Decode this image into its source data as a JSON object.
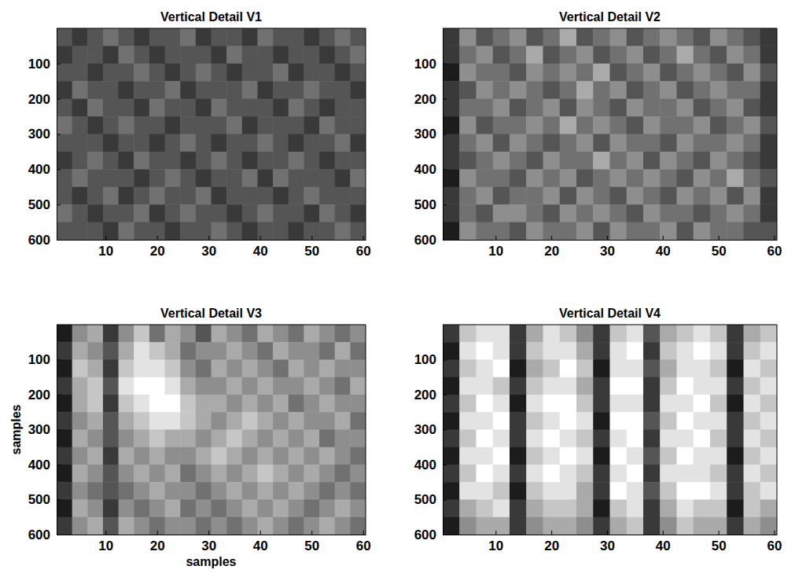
{
  "chart_data": [
    {
      "type": "heatmap",
      "title": "Vertical Detail V1",
      "xlim": [
        0.5,
        60.5
      ],
      "ylim": [
        0,
        600
      ],
      "xticks": [
        10,
        20,
        30,
        40,
        50,
        60
      ],
      "yticks": [
        100,
        200,
        300,
        400,
        500,
        600
      ],
      "clim": [
        0,
        9
      ],
      "x_edges": [
        0.5,
        3.5,
        6.5,
        9.5,
        12.5,
        15.5,
        18.5,
        21.5,
        24.5,
        27.5,
        30.5,
        33.5,
        36.5,
        39.5,
        42.5,
        45.5,
        48.5,
        51.5,
        54.5,
        57.5,
        60.5
      ],
      "y_edges": [
        0,
        50,
        100,
        150,
        200,
        250,
        300,
        350,
        400,
        450,
        500,
        550,
        600
      ],
      "cells": [
        [
          3,
          2,
          3,
          4,
          3,
          2,
          3,
          3,
          4,
          2,
          3,
          3,
          2,
          4,
          3,
          3,
          2,
          3,
          4,
          3
        ],
        [
          2,
          3,
          3,
          2,
          4,
          3,
          2,
          3,
          3,
          3,
          2,
          4,
          3,
          3,
          2,
          3,
          3,
          2,
          3,
          4
        ],
        [
          3,
          3,
          2,
          3,
          3,
          4,
          3,
          2,
          3,
          4,
          3,
          2,
          3,
          3,
          4,
          2,
          3,
          3,
          2,
          3
        ],
        [
          2,
          4,
          3,
          3,
          2,
          3,
          3,
          4,
          2,
          3,
          3,
          3,
          4,
          2,
          3,
          3,
          4,
          3,
          3,
          2
        ],
        [
          3,
          2,
          4,
          3,
          3,
          2,
          4,
          3,
          3,
          2,
          4,
          3,
          3,
          3,
          2,
          4,
          3,
          2,
          3,
          3
        ],
        [
          4,
          3,
          2,
          3,
          4,
          3,
          3,
          2,
          3,
          3,
          3,
          4,
          2,
          3,
          3,
          3,
          2,
          4,
          3,
          3
        ],
        [
          3,
          3,
          3,
          2,
          3,
          3,
          2,
          3,
          4,
          3,
          2,
          3,
          3,
          4,
          3,
          2,
          3,
          3,
          4,
          2
        ],
        [
          2,
          3,
          4,
          3,
          2,
          4,
          3,
          3,
          2,
          3,
          4,
          3,
          2,
          3,
          3,
          4,
          3,
          2,
          3,
          3
        ],
        [
          3,
          4,
          3,
          3,
          3,
          2,
          3,
          4,
          3,
          2,
          3,
          3,
          4,
          2,
          4,
          3,
          3,
          3,
          2,
          4
        ],
        [
          3,
          2,
          3,
          4,
          2,
          3,
          4,
          3,
          3,
          4,
          2,
          3,
          3,
          3,
          2,
          3,
          4,
          3,
          3,
          3
        ],
        [
          4,
          3,
          2,
          3,
          3,
          4,
          2,
          3,
          4,
          3,
          3,
          2,
          3,
          4,
          3,
          3,
          2,
          4,
          3,
          2
        ],
        [
          3,
          3,
          3,
          2,
          4,
          3,
          3,
          2,
          3,
          3,
          4,
          3,
          2,
          3,
          3,
          2,
          3,
          3,
          4,
          3
        ]
      ]
    },
    {
      "type": "heatmap",
      "title": "Vertical Detail V2",
      "xlim": [
        0.5,
        60.5
      ],
      "ylim": [
        0,
        600
      ],
      "xticks": [
        10,
        20,
        30,
        40,
        50,
        60
      ],
      "yticks": [
        100,
        200,
        300,
        400,
        500,
        600
      ],
      "clim": [
        0,
        9
      ],
      "x_edges": [
        0.5,
        3.5,
        6.5,
        9.5,
        12.5,
        15.5,
        18.5,
        21.5,
        24.5,
        27.5,
        30.5,
        33.5,
        36.5,
        39.5,
        42.5,
        45.5,
        48.5,
        51.5,
        54.5,
        57.5,
        60.5
      ],
      "y_edges": [
        0,
        50,
        100,
        150,
        200,
        250,
        300,
        350,
        400,
        450,
        500,
        550,
        600
      ],
      "cells": [
        [
          2,
          5,
          3,
          4,
          5,
          3,
          4,
          6,
          3,
          4,
          5,
          3,
          4,
          5,
          4,
          3,
          5,
          4,
          3,
          2
        ],
        [
          2,
          4,
          5,
          3,
          4,
          6,
          3,
          4,
          5,
          3,
          4,
          5,
          3,
          4,
          6,
          4,
          3,
          5,
          4,
          2
        ],
        [
          1,
          5,
          4,
          4,
          3,
          5,
          4,
          5,
          4,
          6,
          3,
          4,
          5,
          3,
          4,
          5,
          4,
          3,
          5,
          3
        ],
        [
          2,
          3,
          5,
          4,
          5,
          4,
          3,
          4,
          6,
          4,
          5,
          3,
          4,
          5,
          3,
          4,
          5,
          4,
          4,
          2
        ],
        [
          2,
          4,
          4,
          5,
          3,
          4,
          5,
          3,
          5,
          4,
          3,
          5,
          4,
          4,
          5,
          3,
          4,
          5,
          3,
          2
        ],
        [
          1,
          5,
          3,
          4,
          4,
          5,
          4,
          6,
          4,
          5,
          4,
          3,
          5,
          4,
          4,
          5,
          3,
          4,
          5,
          3
        ],
        [
          2,
          4,
          5,
          3,
          5,
          4,
          3,
          4,
          5,
          3,
          5,
          4,
          4,
          3,
          5,
          4,
          4,
          5,
          4,
          2
        ],
        [
          2,
          3,
          4,
          5,
          4,
          3,
          5,
          4,
          4,
          6,
          4,
          5,
          3,
          5,
          4,
          3,
          5,
          4,
          3,
          2
        ],
        [
          1,
          5,
          4,
          4,
          3,
          5,
          4,
          5,
          3,
          4,
          5,
          4,
          5,
          4,
          3,
          5,
          4,
          6,
          4,
          3
        ],
        [
          2,
          4,
          5,
          3,
          4,
          4,
          5,
          3,
          5,
          4,
          3,
          5,
          4,
          3,
          5,
          4,
          5,
          3,
          5,
          2
        ],
        [
          2,
          4,
          3,
          5,
          5,
          4,
          3,
          5,
          4,
          5,
          4,
          3,
          5,
          4,
          4,
          3,
          4,
          5,
          4,
          2
        ],
        [
          1,
          5,
          4,
          4,
          3,
          5,
          4,
          4,
          5,
          3,
          5,
          4,
          4,
          5,
          3,
          5,
          4,
          4,
          3,
          3
        ]
      ]
    },
    {
      "type": "heatmap",
      "title": "Vertical Detail V3",
      "xlabel": "samples",
      "ylabel": "samples",
      "xlim": [
        0.5,
        60.5
      ],
      "ylim": [
        0,
        600
      ],
      "xticks": [
        10,
        20,
        30,
        40,
        50,
        60
      ],
      "yticks": [
        100,
        200,
        300,
        400,
        500,
        600
      ],
      "clim": [
        0,
        9
      ],
      "x_edges": [
        0.5,
        3.5,
        6.5,
        9.5,
        12.5,
        15.5,
        18.5,
        21.5,
        24.5,
        27.5,
        30.5,
        33.5,
        36.5,
        39.5,
        42.5,
        45.5,
        48.5,
        51.5,
        54.5,
        57.5,
        60.5
      ],
      "y_edges": [
        0,
        50,
        100,
        150,
        200,
        250,
        300,
        350,
        400,
        450,
        500,
        550,
        600
      ],
      "cells": [
        [
          1,
          5,
          6,
          2,
          5,
          7,
          4,
          6,
          5,
          3,
          6,
          5,
          4,
          6,
          5,
          4,
          6,
          5,
          4,
          5
        ],
        [
          2,
          6,
          5,
          3,
          6,
          8,
          7,
          6,
          4,
          5,
          5,
          6,
          5,
          4,
          6,
          5,
          5,
          4,
          6,
          4
        ],
        [
          1,
          7,
          6,
          2,
          7,
          8,
          8,
          7,
          5,
          4,
          6,
          5,
          6,
          5,
          4,
          6,
          5,
          6,
          5,
          5
        ],
        [
          2,
          6,
          7,
          3,
          8,
          9,
          9,
          8,
          6,
          5,
          5,
          6,
          5,
          6,
          5,
          5,
          6,
          5,
          4,
          6
        ],
        [
          1,
          6,
          7,
          2,
          7,
          8,
          9,
          9,
          7,
          6,
          6,
          5,
          6,
          5,
          6,
          4,
          5,
          6,
          5,
          5
        ],
        [
          2,
          5,
          6,
          3,
          6,
          7,
          8,
          8,
          7,
          6,
          5,
          6,
          7,
          6,
          5,
          6,
          5,
          5,
          6,
          4
        ],
        [
          1,
          6,
          5,
          3,
          5,
          6,
          7,
          6,
          6,
          5,
          6,
          7,
          6,
          5,
          6,
          5,
          6,
          4,
          5,
          5
        ],
        [
          2,
          5,
          6,
          2,
          6,
          5,
          6,
          5,
          5,
          6,
          7,
          6,
          5,
          6,
          5,
          6,
          5,
          6,
          5,
          4
        ],
        [
          1,
          6,
          5,
          3,
          5,
          6,
          5,
          6,
          4,
          5,
          6,
          5,
          6,
          7,
          6,
          5,
          6,
          5,
          4,
          5
        ],
        [
          2,
          5,
          4,
          3,
          4,
          5,
          6,
          5,
          5,
          4,
          5,
          6,
          5,
          6,
          5,
          6,
          5,
          4,
          5,
          4
        ],
        [
          1,
          6,
          5,
          2,
          5,
          4,
          5,
          6,
          4,
          5,
          4,
          5,
          6,
          5,
          6,
          5,
          4,
          5,
          6,
          5
        ],
        [
          2,
          5,
          6,
          3,
          6,
          5,
          4,
          5,
          5,
          4,
          5,
          4,
          5,
          6,
          5,
          4,
          5,
          6,
          5,
          4
        ]
      ]
    },
    {
      "type": "heatmap",
      "title": "Vertical Detail V4",
      "xlim": [
        0.5,
        60.5
      ],
      "ylim": [
        0,
        600
      ],
      "xticks": [
        10,
        20,
        30,
        40,
        50,
        60
      ],
      "yticks": [
        100,
        200,
        300,
        400,
        500,
        600
      ],
      "clim": [
        0,
        9
      ],
      "x_edges": [
        0.5,
        3.5,
        6.5,
        9.5,
        12.5,
        15.5,
        18.5,
        21.5,
        24.5,
        27.5,
        30.5,
        33.5,
        36.5,
        39.5,
        42.5,
        45.5,
        48.5,
        51.5,
        54.5,
        57.5,
        60.5
      ],
      "y_edges": [
        0,
        50,
        100,
        150,
        200,
        250,
        300,
        350,
        400,
        450,
        500,
        550,
        600
      ],
      "cells": [
        [
          2,
          7,
          8,
          8,
          2,
          6,
          8,
          7,
          5,
          2,
          7,
          8,
          3,
          6,
          7,
          8,
          7,
          2,
          6,
          7
        ],
        [
          1,
          8,
          9,
          8,
          2,
          7,
          8,
          8,
          6,
          2,
          8,
          9,
          2,
          7,
          8,
          9,
          8,
          2,
          7,
          8
        ],
        [
          2,
          7,
          8,
          9,
          1,
          6,
          7,
          9,
          7,
          1,
          8,
          8,
          3,
          6,
          8,
          8,
          7,
          1,
          8,
          7
        ],
        [
          1,
          8,
          8,
          7,
          2,
          7,
          8,
          8,
          6,
          2,
          9,
          9,
          2,
          7,
          9,
          8,
          8,
          2,
          7,
          8
        ],
        [
          2,
          7,
          9,
          8,
          1,
          8,
          9,
          9,
          7,
          2,
          8,
          8,
          2,
          8,
          8,
          9,
          7,
          1,
          8,
          7
        ],
        [
          1,
          8,
          8,
          9,
          2,
          7,
          8,
          9,
          8,
          1,
          9,
          9,
          3,
          7,
          9,
          8,
          8,
          2,
          7,
          8
        ],
        [
          2,
          7,
          9,
          8,
          2,
          8,
          9,
          8,
          7,
          2,
          8,
          9,
          2,
          8,
          8,
          9,
          7,
          2,
          8,
          7
        ],
        [
          1,
          8,
          8,
          9,
          1,
          7,
          8,
          9,
          8,
          1,
          9,
          8,
          3,
          7,
          9,
          8,
          8,
          1,
          7,
          8
        ],
        [
          2,
          7,
          9,
          8,
          2,
          8,
          9,
          8,
          7,
          2,
          8,
          9,
          2,
          8,
          8,
          8,
          7,
          2,
          8,
          7
        ],
        [
          1,
          8,
          8,
          7,
          1,
          7,
          8,
          8,
          6,
          2,
          9,
          8,
          3,
          7,
          9,
          9,
          8,
          2,
          7,
          8
        ],
        [
          2,
          6,
          7,
          8,
          2,
          6,
          7,
          7,
          6,
          1,
          7,
          8,
          2,
          6,
          8,
          7,
          7,
          1,
          7,
          6
        ],
        [
          1,
          5,
          6,
          6,
          2,
          5,
          6,
          6,
          5,
          2,
          6,
          7,
          2,
          5,
          7,
          6,
          6,
          2,
          6,
          5
        ]
      ]
    }
  ]
}
